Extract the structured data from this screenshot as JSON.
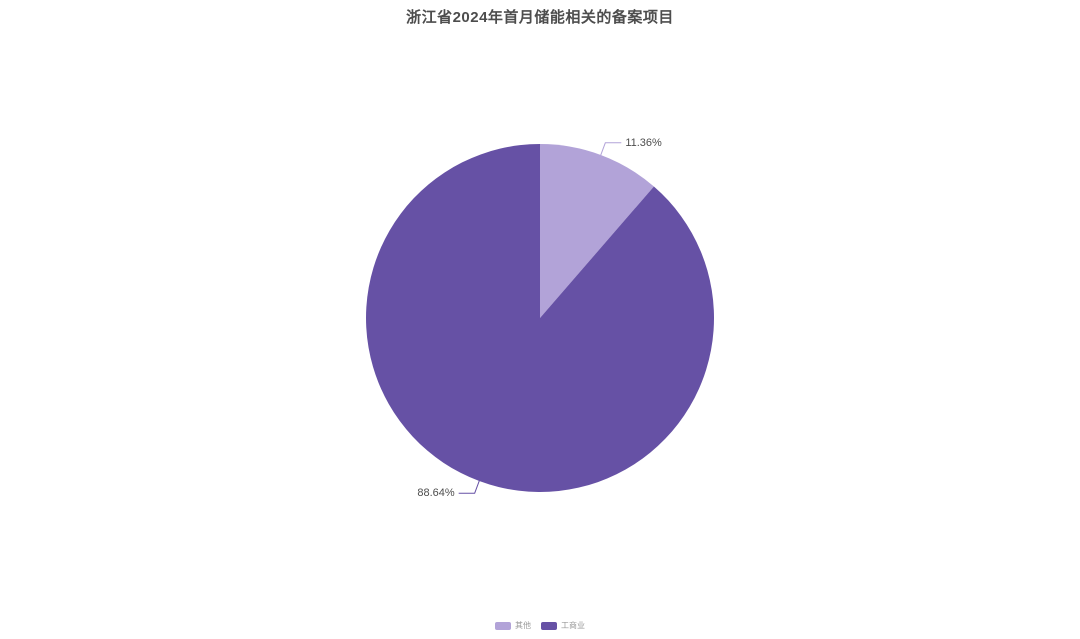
{
  "chart": {
    "title": "浙江省2024年首月储能相关的备案项目",
    "title_color": "#4d4d4d",
    "background": "#ffffff"
  },
  "chart_data": {
    "type": "pie",
    "title": "浙江省2024年首月储能相关的备案项目",
    "series": [
      {
        "name": "其他",
        "value": 11.36,
        "label": "11.36%",
        "color": "#b2a3d8"
      },
      {
        "name": "工商业",
        "value": 88.64,
        "label": "88.64%",
        "color": "#6651a5"
      }
    ],
    "start_angle": "top",
    "direction": "clockwise",
    "label_color": "#4d4d4d",
    "label_line_matches_slice_color": true,
    "legend_position": "bottom-center",
    "background": "#ffffff"
  },
  "legend": {
    "items": [
      {
        "label": "其他",
        "color": "#b2a3d8"
      },
      {
        "label": "工商业",
        "color": "#6651a5"
      }
    ],
    "text_color": "#999999"
  }
}
